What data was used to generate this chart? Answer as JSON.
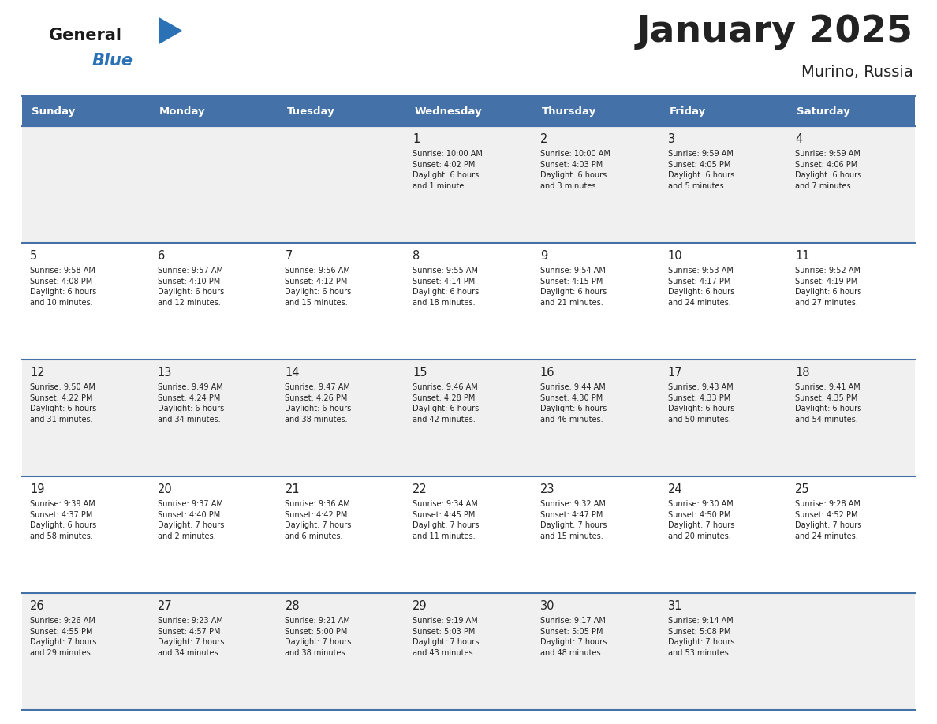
{
  "title": "January 2025",
  "subtitle": "Murino, Russia",
  "header_color": "#4472a8",
  "header_text_color": "#ffffff",
  "cell_bg_color": "#f0f0f0",
  "cell_bg_alt_color": "#ffffff",
  "text_color": "#222222",
  "line_color": "#4472a8",
  "days_of_week": [
    "Sunday",
    "Monday",
    "Tuesday",
    "Wednesday",
    "Thursday",
    "Friday",
    "Saturday"
  ],
  "weeks": [
    [
      {
        "day": null,
        "info": null
      },
      {
        "day": null,
        "info": null
      },
      {
        "day": null,
        "info": null
      },
      {
        "day": 1,
        "info": "Sunrise: 10:00 AM\nSunset: 4:02 PM\nDaylight: 6 hours\nand 1 minute."
      },
      {
        "day": 2,
        "info": "Sunrise: 10:00 AM\nSunset: 4:03 PM\nDaylight: 6 hours\nand 3 minutes."
      },
      {
        "day": 3,
        "info": "Sunrise: 9:59 AM\nSunset: 4:05 PM\nDaylight: 6 hours\nand 5 minutes."
      },
      {
        "day": 4,
        "info": "Sunrise: 9:59 AM\nSunset: 4:06 PM\nDaylight: 6 hours\nand 7 minutes."
      }
    ],
    [
      {
        "day": 5,
        "info": "Sunrise: 9:58 AM\nSunset: 4:08 PM\nDaylight: 6 hours\nand 10 minutes."
      },
      {
        "day": 6,
        "info": "Sunrise: 9:57 AM\nSunset: 4:10 PM\nDaylight: 6 hours\nand 12 minutes."
      },
      {
        "day": 7,
        "info": "Sunrise: 9:56 AM\nSunset: 4:12 PM\nDaylight: 6 hours\nand 15 minutes."
      },
      {
        "day": 8,
        "info": "Sunrise: 9:55 AM\nSunset: 4:14 PM\nDaylight: 6 hours\nand 18 minutes."
      },
      {
        "day": 9,
        "info": "Sunrise: 9:54 AM\nSunset: 4:15 PM\nDaylight: 6 hours\nand 21 minutes."
      },
      {
        "day": 10,
        "info": "Sunrise: 9:53 AM\nSunset: 4:17 PM\nDaylight: 6 hours\nand 24 minutes."
      },
      {
        "day": 11,
        "info": "Sunrise: 9:52 AM\nSunset: 4:19 PM\nDaylight: 6 hours\nand 27 minutes."
      }
    ],
    [
      {
        "day": 12,
        "info": "Sunrise: 9:50 AM\nSunset: 4:22 PM\nDaylight: 6 hours\nand 31 minutes."
      },
      {
        "day": 13,
        "info": "Sunrise: 9:49 AM\nSunset: 4:24 PM\nDaylight: 6 hours\nand 34 minutes."
      },
      {
        "day": 14,
        "info": "Sunrise: 9:47 AM\nSunset: 4:26 PM\nDaylight: 6 hours\nand 38 minutes."
      },
      {
        "day": 15,
        "info": "Sunrise: 9:46 AM\nSunset: 4:28 PM\nDaylight: 6 hours\nand 42 minutes."
      },
      {
        "day": 16,
        "info": "Sunrise: 9:44 AM\nSunset: 4:30 PM\nDaylight: 6 hours\nand 46 minutes."
      },
      {
        "day": 17,
        "info": "Sunrise: 9:43 AM\nSunset: 4:33 PM\nDaylight: 6 hours\nand 50 minutes."
      },
      {
        "day": 18,
        "info": "Sunrise: 9:41 AM\nSunset: 4:35 PM\nDaylight: 6 hours\nand 54 minutes."
      }
    ],
    [
      {
        "day": 19,
        "info": "Sunrise: 9:39 AM\nSunset: 4:37 PM\nDaylight: 6 hours\nand 58 minutes."
      },
      {
        "day": 20,
        "info": "Sunrise: 9:37 AM\nSunset: 4:40 PM\nDaylight: 7 hours\nand 2 minutes."
      },
      {
        "day": 21,
        "info": "Sunrise: 9:36 AM\nSunset: 4:42 PM\nDaylight: 7 hours\nand 6 minutes."
      },
      {
        "day": 22,
        "info": "Sunrise: 9:34 AM\nSunset: 4:45 PM\nDaylight: 7 hours\nand 11 minutes."
      },
      {
        "day": 23,
        "info": "Sunrise: 9:32 AM\nSunset: 4:47 PM\nDaylight: 7 hours\nand 15 minutes."
      },
      {
        "day": 24,
        "info": "Sunrise: 9:30 AM\nSunset: 4:50 PM\nDaylight: 7 hours\nand 20 minutes."
      },
      {
        "day": 25,
        "info": "Sunrise: 9:28 AM\nSunset: 4:52 PM\nDaylight: 7 hours\nand 24 minutes."
      }
    ],
    [
      {
        "day": 26,
        "info": "Sunrise: 9:26 AM\nSunset: 4:55 PM\nDaylight: 7 hours\nand 29 minutes."
      },
      {
        "day": 27,
        "info": "Sunrise: 9:23 AM\nSunset: 4:57 PM\nDaylight: 7 hours\nand 34 minutes."
      },
      {
        "day": 28,
        "info": "Sunrise: 9:21 AM\nSunset: 5:00 PM\nDaylight: 7 hours\nand 38 minutes."
      },
      {
        "day": 29,
        "info": "Sunrise: 9:19 AM\nSunset: 5:03 PM\nDaylight: 7 hours\nand 43 minutes."
      },
      {
        "day": 30,
        "info": "Sunrise: 9:17 AM\nSunset: 5:05 PM\nDaylight: 7 hours\nand 48 minutes."
      },
      {
        "day": 31,
        "info": "Sunrise: 9:14 AM\nSunset: 5:08 PM\nDaylight: 7 hours\nand 53 minutes."
      },
      {
        "day": null,
        "info": null
      }
    ]
  ],
  "logo_general_color": "#1a1a1a",
  "logo_blue_color": "#2a72b5",
  "logo_triangle_color": "#2a72b5",
  "fig_width": 11.88,
  "fig_height": 9.18,
  "dpi": 100
}
